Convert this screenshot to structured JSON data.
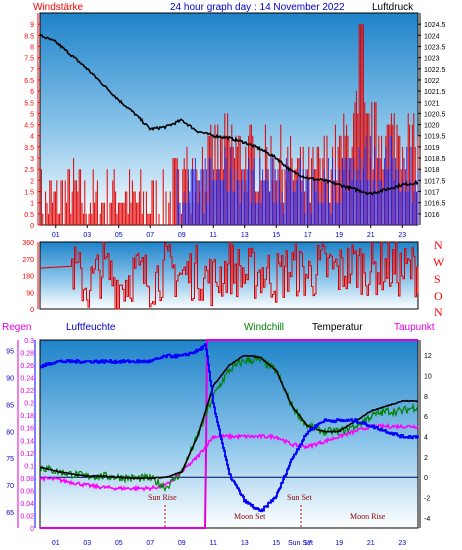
{
  "header": {
    "wind_label": "Windstärke",
    "title": "24 hour graph day : 14 November 2022",
    "pressure_label": "Luftdruck"
  },
  "direction_letters": [
    "N",
    "W",
    "S",
    "O",
    "N"
  ],
  "legend": {
    "rain": "Regen",
    "humidity": "Luftfeuchte",
    "windchill": "Windchill",
    "temperature": "Temperatur",
    "dewpoint": "Taupunkt"
  },
  "annotations": {
    "sun_rise": "Sun Rise",
    "sun_set": "Sun Set",
    "moon_set": "Moon Set",
    "moon_rise": "Moon Rise",
    "sun_set_axis": "Sun Set"
  },
  "colors": {
    "wind": "#e00000",
    "gust": "#2020e0",
    "pressure": "#000000",
    "humidity": "#0000ff",
    "temperature": "#000000",
    "windchill": "#008000",
    "dewpoint": "#ff00ff",
    "rain": "#e000e0",
    "label_red": "#ff0000",
    "label_blue": "#0000cc"
  },
  "chart_data": [
    {
      "type": "line",
      "title": "24 hour graph day : 14 November 2022",
      "series": [
        {
          "name": "Windstärke",
          "x": [
            0,
            1,
            2,
            3,
            4,
            5,
            6,
            7,
            8,
            9,
            10,
            11,
            12,
            13,
            14,
            15,
            16,
            17,
            18,
            19,
            20,
            21,
            22,
            23,
            24
          ],
          "values": [
            1,
            1,
            1.5,
            1,
            1,
            1.5,
            1,
            1,
            1,
            2,
            2.5,
            3,
            3.5,
            3,
            3,
            3,
            2.5,
            2,
            2.5,
            3,
            4.5,
            4,
            4,
            4,
            3
          ]
        },
        {
          "name": "Luftdruck",
          "x": [
            0,
            1,
            2,
            3,
            4,
            5,
            6,
            7,
            8,
            9,
            10,
            11,
            12,
            13,
            14,
            15,
            16,
            17,
            18,
            19,
            20,
            21,
            22,
            23,
            24
          ],
          "values": [
            1024,
            1023.7,
            1023.1,
            1022.5,
            1021.8,
            1021.1,
            1020.5,
            1019.8,
            1019.9,
            1020.2,
            1019.7,
            1019.5,
            1019.4,
            1019.2,
            1018.9,
            1018.5,
            1017.9,
            1017.6,
            1017.5,
            1017.3,
            1017.1,
            1016.9,
            1017.1,
            1017.3,
            1017.4
          ]
        }
      ],
      "y_left": {
        "label": "Windstärke",
        "ticks": [
          0,
          0.5,
          1,
          1.5,
          2,
          2.5,
          3,
          3.5,
          4,
          4.5,
          5,
          5.5,
          6,
          6.5,
          7,
          7.5,
          8,
          8.5,
          9
        ],
        "range": [
          0,
          9.5
        ]
      },
      "y_right": {
        "label": "Luftdruck",
        "ticks": [
          1016,
          1016.5,
          1017,
          1017.5,
          1018,
          1018.5,
          1019,
          1019.5,
          1020,
          1020.5,
          1021,
          1021.5,
          1022,
          1022.5,
          1023,
          1023.5,
          1024,
          1024.5
        ],
        "range": [
          1015.5,
          1025
        ]
      },
      "x_ticks": [
        "01",
        "03",
        "05",
        "07",
        "09",
        "11",
        "13",
        "15",
        "17",
        "19",
        "21",
        "23"
      ]
    },
    {
      "type": "line",
      "title": "",
      "series": [
        {
          "name": "",
          "x": [
            0,
            2,
            3,
            4,
            5,
            6,
            7,
            8,
            9,
            10,
            11,
            12,
            13,
            14,
            15,
            16,
            17,
            18,
            19,
            20,
            21,
            22,
            23,
            24
          ],
          "values": [
            220,
            230,
            110,
            230,
            120,
            200,
            150,
            220,
            180,
            200,
            150,
            230,
            180,
            200,
            170,
            220,
            180,
            230,
            200,
            240,
            210,
            230,
            200,
            220
          ]
        }
      ],
      "y_left": {
        "ticks": [
          0,
          90,
          180,
          270,
          360
        ],
        "range": [
          0,
          360
        ]
      },
      "y_right": {
        "labels": [
          "N",
          "W",
          "S",
          "O",
          "N"
        ]
      }
    },
    {
      "type": "line",
      "title": "",
      "series": [
        {
          "name": "Luftfeuchte",
          "x": [
            0,
            1,
            2,
            3,
            4,
            5,
            6,
            7,
            8,
            9,
            10,
            10.5,
            11,
            12,
            13,
            14,
            15,
            16,
            17,
            18,
            19,
            20,
            21,
            22,
            23,
            24
          ],
          "values": [
            92,
            93,
            93,
            93,
            93,
            93,
            93,
            93,
            94,
            94,
            95,
            96,
            85,
            72,
            67,
            65,
            68,
            75,
            80,
            82,
            82,
            82,
            81,
            80,
            79,
            79
          ]
        },
        {
          "name": "Temperatur",
          "x": [
            0,
            1,
            2,
            3,
            4,
            5,
            6,
            7,
            8,
            9,
            10,
            11,
            12,
            13,
            14,
            15,
            16,
            17,
            18,
            19,
            20,
            21,
            22,
            23,
            24
          ],
          "values": [
            1,
            0.6,
            0.3,
            0.1,
            0.1,
            0,
            -0.1,
            -0.1,
            0,
            0.5,
            4,
            9,
            11,
            12,
            11.8,
            10.5,
            7,
            5,
            4.5,
            4.5,
            5.5,
            6.5,
            7,
            7.5,
            7.5
          ]
        },
        {
          "name": "Windchill",
          "x": [
            0,
            1,
            2,
            3,
            4,
            5,
            6,
            7,
            8,
            9,
            10,
            11,
            12,
            13,
            14,
            15,
            16,
            17,
            18,
            19,
            20,
            21,
            22,
            23,
            24
          ],
          "values": [
            1,
            0.6,
            0.3,
            0.1,
            0.1,
            0,
            -0.1,
            -0.1,
            -1,
            0.5,
            4,
            8,
            10.5,
            11.5,
            11.5,
            10.5,
            7,
            5,
            4.5,
            4.5,
            5,
            6,
            6.5,
            6.5,
            7
          ]
        },
        {
          "name": "Taupunkt",
          "x": [
            0,
            1,
            2,
            3,
            4,
            5,
            6,
            7,
            8,
            9,
            10,
            11,
            12,
            13,
            14,
            15,
            16,
            17,
            18,
            19,
            20,
            21,
            22,
            23,
            24
          ],
          "values": [
            -0.1,
            -0.2,
            -0.5,
            -0.8,
            -1,
            -1.1,
            -1.1,
            -1.1,
            -0.8,
            0.5,
            2,
            4,
            4,
            4,
            4,
            4,
            3.2,
            3,
            3.5,
            4,
            4.5,
            5,
            5,
            5,
            5
          ]
        },
        {
          "name": "Regen",
          "x": [
            0,
            10.5,
            10.6,
            24
          ],
          "values": [
            0,
            0,
            0.3,
            0.3
          ]
        }
      ],
      "y_left_rain": {
        "label": "Regen",
        "ticks": [
          0,
          0.02,
          0.04,
          0.06,
          0.08,
          0.1,
          0.12,
          0.14,
          0.16,
          0.18,
          0.2,
          0.22,
          0.24,
          0.26,
          0.28,
          0.3
        ],
        "range": [
          0,
          0.3
        ]
      },
      "y_left_humidity": {
        "label": "Luftfeuchte",
        "ticks": [
          65,
          70,
          75,
          80,
          85,
          90,
          95
        ],
        "range": [
          62,
          97
        ]
      },
      "y_right": {
        "label": "Taupunkt",
        "ticks": [
          -4,
          -2,
          0,
          2,
          4,
          6,
          8,
          10,
          12
        ],
        "range": [
          -5,
          13.5
        ]
      },
      "x_ticks": [
        "01",
        "03",
        "05",
        "07",
        "09",
        "11",
        "13",
        "15",
        "17",
        "19",
        "21",
        "23"
      ]
    }
  ]
}
